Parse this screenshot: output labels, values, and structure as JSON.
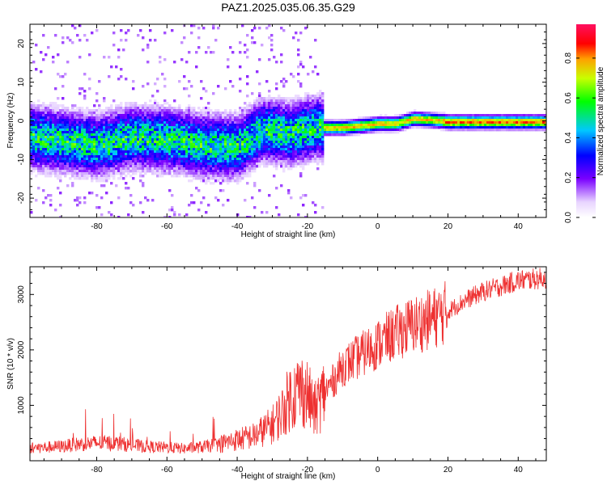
{
  "figure": {
    "title": "PAZ1.2025.035.06.35.G29"
  },
  "chart_data": [
    {
      "type": "heatmap",
      "xlabel": "Height of straight line (km)",
      "ylabel": "Frequency (Hz)",
      "xlim": [
        -99,
        48
      ],
      "ylim": [
        -25,
        25
      ],
      "xticks": [
        -80,
        -60,
        -40,
        -20,
        0,
        20,
        40
      ],
      "yticks": [
        -20,
        -10,
        0,
        10,
        20
      ],
      "colorbar": {
        "label": "Normalized spectral amplitude",
        "range": [
          0.0,
          0.97
        ],
        "ticks": [
          "0.0",
          "0.2",
          "0.4",
          "0.6",
          "0.8"
        ]
      },
      "ridge": [
        {
          "x": -98,
          "freq": -4.0
        },
        {
          "x": -90,
          "freq": -5.0
        },
        {
          "x": -80,
          "freq": -6.0
        },
        {
          "x": -70,
          "freq": -4.0
        },
        {
          "x": -60,
          "freq": -4.5
        },
        {
          "x": -50,
          "freq": -6.0
        },
        {
          "x": -40,
          "freq": -6.5
        },
        {
          "x": -33,
          "freq": -2.0
        },
        {
          "x": -25,
          "freq": -3.0
        },
        {
          "x": -18,
          "freq": -1.5
        },
        {
          "x": -10,
          "freq": -1.5
        },
        {
          "x": 0,
          "freq": -0.5
        },
        {
          "x": 5,
          "freq": -0.5
        },
        {
          "x": 10,
          "freq": 0.8
        },
        {
          "x": 15,
          "freq": 0.5
        },
        {
          "x": 20,
          "freq": 0.0
        },
        {
          "x": 48,
          "freq": 0.0
        }
      ]
    },
    {
      "type": "line",
      "xlabel": "Height of straight line (km)",
      "ylabel": "SNR (10 * v/v)",
      "xlim": [
        -99,
        48
      ],
      "ylim": [
        0,
        3500
      ],
      "xticks": [
        -80,
        -60,
        -40,
        -20,
        0,
        20,
        40
      ],
      "yticks": [
        1000,
        2000,
        3000
      ],
      "color": "#ee3030",
      "series": [
        {
          "x": [
            -99,
            -95,
            -90,
            -85,
            -80,
            -75,
            -70,
            -65,
            -60,
            -55,
            -50,
            -45,
            -40,
            -35,
            -30,
            -27,
            -25,
            -22,
            -20,
            -18,
            -15,
            -12,
            -10,
            -5,
            0,
            5,
            10,
            15,
            20,
            25,
            30,
            35,
            40,
            45,
            48
          ],
          "y": [
            230,
            240,
            260,
            300,
            320,
            320,
            280,
            250,
            240,
            220,
            250,
            300,
            380,
            450,
            650,
            900,
            1150,
            1300,
            1200,
            900,
            1250,
            1500,
            1700,
            1900,
            2100,
            2300,
            2450,
            2550,
            2700,
            2900,
            3050,
            3150,
            3250,
            3280,
            3300
          ]
        }
      ]
    }
  ]
}
